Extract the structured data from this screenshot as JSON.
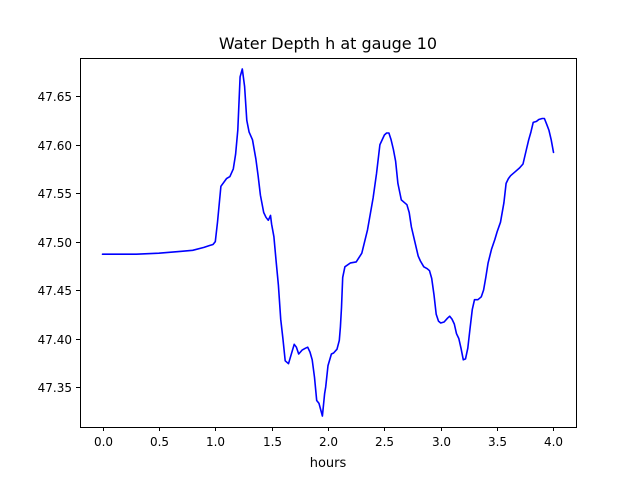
{
  "chart_data": {
    "type": "line",
    "title": "Water Depth h at gauge 10",
    "xlabel": "hours",
    "ylabel": "",
    "xlim": [
      -0.2,
      4.2
    ],
    "ylim": [
      47.3087,
      47.6894
    ],
    "x_ticks": [
      0.0,
      0.5,
      1.0,
      1.5,
      2.0,
      2.5,
      3.0,
      3.5,
      4.0
    ],
    "x_tick_labels": [
      "0.0",
      "0.5",
      "1.0",
      "1.5",
      "2.0",
      "2.5",
      "3.0",
      "3.5",
      "4.0"
    ],
    "y_ticks": [
      47.35,
      47.4,
      47.45,
      47.5,
      47.55,
      47.6,
      47.65
    ],
    "y_tick_labels": [
      "47.35",
      "47.40",
      "47.45",
      "47.50",
      "47.55",
      "47.60",
      "47.65"
    ],
    "grid": false,
    "series": [
      {
        "color": "#0000ff",
        "x": [
          0.0,
          0.1,
          0.3,
          0.5,
          0.7,
          0.8,
          0.9,
          0.95,
          0.98,
          1.0,
          1.02,
          1.05,
          1.1,
          1.13,
          1.16,
          1.18,
          1.2,
          1.22,
          1.24,
          1.26,
          1.28,
          1.3,
          1.33,
          1.36,
          1.38,
          1.4,
          1.43,
          1.45,
          1.47,
          1.49,
          1.5,
          1.52,
          1.54,
          1.56,
          1.58,
          1.6,
          1.62,
          1.65,
          1.7,
          1.72,
          1.74,
          1.77,
          1.8,
          1.82,
          1.84,
          1.86,
          1.88,
          1.9,
          1.92,
          1.95,
          1.97,
          1.98,
          2.0,
          2.03,
          2.05,
          2.08,
          2.1,
          2.11,
          2.12,
          2.13,
          2.15,
          2.2,
          2.25,
          2.3,
          2.35,
          2.4,
          2.43,
          2.46,
          2.5,
          2.52,
          2.54,
          2.56,
          2.58,
          2.6,
          2.62,
          2.65,
          2.68,
          2.7,
          2.72,
          2.74,
          2.77,
          2.8,
          2.82,
          2.85,
          2.88,
          2.9,
          2.92,
          2.94,
          2.96,
          2.98,
          3.0,
          3.03,
          3.06,
          3.08,
          3.1,
          3.12,
          3.14,
          3.16,
          3.18,
          3.2,
          3.22,
          3.24,
          3.26,
          3.28,
          3.3,
          3.33,
          3.36,
          3.38,
          3.4,
          3.42,
          3.45,
          3.48,
          3.5,
          3.53,
          3.56,
          3.58,
          3.6,
          3.62,
          3.64,
          3.66,
          3.7,
          3.73,
          3.76,
          3.78,
          3.8,
          3.82,
          3.85,
          3.87,
          3.9,
          3.92,
          3.94,
          3.96,
          3.98,
          4.0
        ],
        "values": [
          47.487,
          47.487,
          47.487,
          47.488,
          47.49,
          47.491,
          47.494,
          47.496,
          47.497,
          47.5,
          47.52,
          47.557,
          47.565,
          47.567,
          47.575,
          47.59,
          47.615,
          47.67,
          47.678,
          47.66,
          47.625,
          47.613,
          47.605,
          47.585,
          47.568,
          47.548,
          47.53,
          47.525,
          47.522,
          47.527,
          47.518,
          47.505,
          47.48,
          47.455,
          47.42,
          47.4,
          47.377,
          47.374,
          47.394,
          47.391,
          47.384,
          47.388,
          47.39,
          47.391,
          47.386,
          47.378,
          47.36,
          47.336,
          47.333,
          47.32,
          47.343,
          47.35,
          47.372,
          47.384,
          47.385,
          47.389,
          47.398,
          47.412,
          47.432,
          47.463,
          47.474,
          47.478,
          47.479,
          47.488,
          47.512,
          47.545,
          47.57,
          47.6,
          47.61,
          47.612,
          47.612,
          47.605,
          47.595,
          47.583,
          47.56,
          47.543,
          47.54,
          47.538,
          47.53,
          47.515,
          47.5,
          47.485,
          47.48,
          47.474,
          47.472,
          47.47,
          47.462,
          47.445,
          47.425,
          47.418,
          47.416,
          47.417,
          47.421,
          47.423,
          47.42,
          47.415,
          47.405,
          47.4,
          47.39,
          47.378,
          47.379,
          47.39,
          47.41,
          47.43,
          47.44,
          47.44,
          47.443,
          47.45,
          47.463,
          47.478,
          47.492,
          47.502,
          47.51,
          47.52,
          47.54,
          47.56,
          47.565,
          47.568,
          47.57,
          47.572,
          47.576,
          47.58,
          47.595,
          47.605,
          47.613,
          47.623,
          47.624,
          47.626,
          47.627,
          47.627,
          47.621,
          47.615,
          47.605,
          47.592
        ]
      }
    ]
  }
}
